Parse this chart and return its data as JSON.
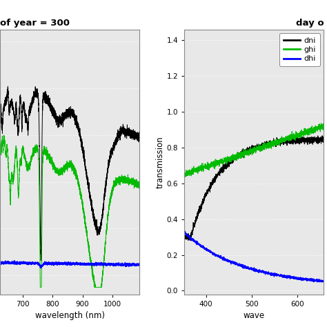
{
  "title_left": "of year = 300",
  "title_right": "day o",
  "xlabel_left": "wavelength (nm)",
  "xlabel_right": "wave",
  "ylabel_right": "transmission",
  "legend_labels": [
    "dni",
    "ghi",
    "dhi"
  ],
  "legend_colors": [
    "black",
    "#00bb00",
    "blue"
  ],
  "left_xlim": [
    625,
    1090
  ],
  "left_ylim": [
    -0.08,
    1.05
  ],
  "left_xticks": [
    700,
    800,
    900,
    1000
  ],
  "right_xlim": [
    352,
    658
  ],
  "right_ylim": [
    -0.02,
    1.46
  ],
  "right_yticks": [
    0.0,
    0.2,
    0.4,
    0.6,
    0.8,
    1.0,
    1.2,
    1.4
  ],
  "right_xticks": [
    400,
    500,
    600
  ],
  "bg_color": "#d8d8d8",
  "grid_color": "#aaaaaa",
  "plot_bg": "#e8e8e8",
  "line_width": 0.7
}
